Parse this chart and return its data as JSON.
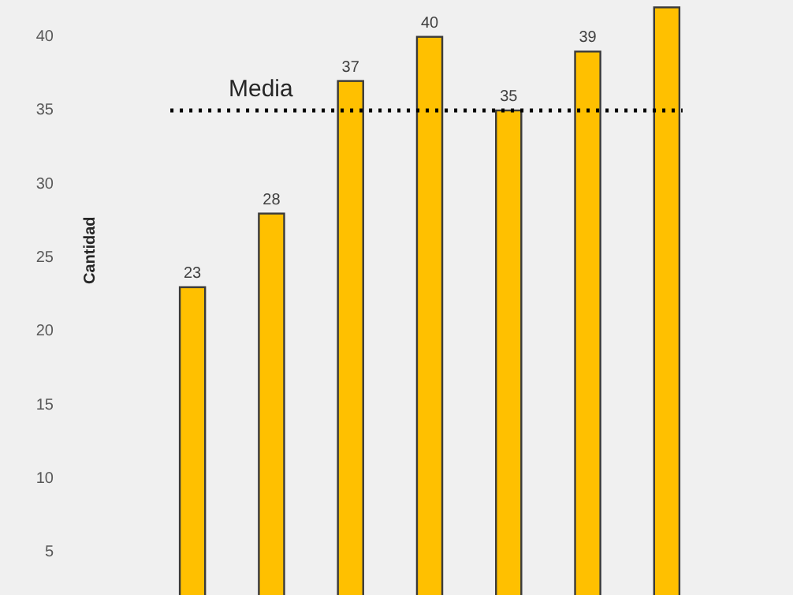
{
  "chart_data": {
    "type": "bar",
    "ylabel": "Cantidad",
    "categories": [
      null,
      null,
      null,
      null,
      null,
      null,
      null
    ],
    "values": [
      23,
      28,
      37,
      40,
      35,
      39,
      42
    ],
    "value_labels": [
      "23",
      "28",
      "37",
      "40",
      "35",
      "39",
      null
    ],
    "color": "#ffc000",
    "ylim": [
      2.1,
      42.5
    ],
    "yticks": [
      5,
      10,
      15,
      20,
      25,
      30,
      35,
      40
    ],
    "grid": false,
    "ref_lines": [
      {
        "axis": "y",
        "value": 35,
        "label": "Media",
        "color": "#000000",
        "line_style": "dotted"
      }
    ]
  }
}
